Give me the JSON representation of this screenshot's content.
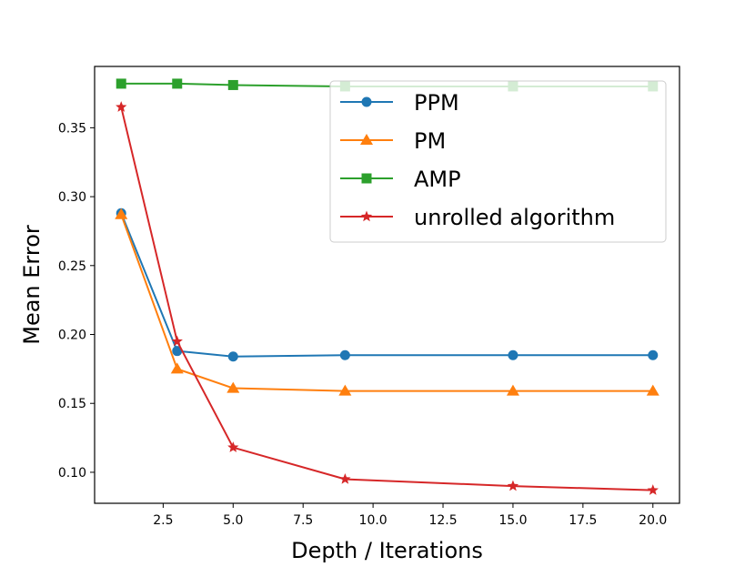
{
  "chart_data": {
    "type": "line",
    "title": "",
    "xlabel": "Depth / Iterations",
    "ylabel": "Mean Error",
    "xlim": [
      0.05,
      20.95
    ],
    "ylim": [
      0.0775,
      0.3945
    ],
    "xticks": [
      2.5,
      5.0,
      7.5,
      10.0,
      12.5,
      15.0,
      17.5,
      20.0
    ],
    "xtick_labels": [
      "2.5",
      "5.0",
      "7.5",
      "10.0",
      "12.5",
      "15.0",
      "17.5",
      "20.0"
    ],
    "yticks": [
      0.1,
      0.15,
      0.2,
      0.25,
      0.3,
      0.35
    ],
    "ytick_labels": [
      "0.10",
      "0.15",
      "0.20",
      "0.25",
      "0.30",
      "0.35"
    ],
    "grid": false,
    "legend_position": "top-right",
    "x": [
      1,
      3,
      5,
      9,
      15,
      20
    ],
    "series": [
      {
        "name": "PPM",
        "color": "#1f77b4",
        "marker": "circle",
        "values": [
          0.288,
          0.188,
          0.184,
          0.185,
          0.185,
          0.185
        ]
      },
      {
        "name": "PM",
        "color": "#ff7f0e",
        "marker": "triangle",
        "values": [
          0.287,
          0.175,
          0.161,
          0.159,
          0.159,
          0.159
        ]
      },
      {
        "name": "AMP",
        "color": "#2ca02c",
        "marker": "square",
        "values": [
          0.382,
          0.382,
          0.381,
          0.38,
          0.38,
          0.38
        ]
      },
      {
        "name": "unrolled algorithm",
        "color": "#d62728",
        "marker": "star",
        "values": [
          0.365,
          0.195,
          0.118,
          0.095,
          0.09,
          0.087
        ]
      }
    ]
  }
}
